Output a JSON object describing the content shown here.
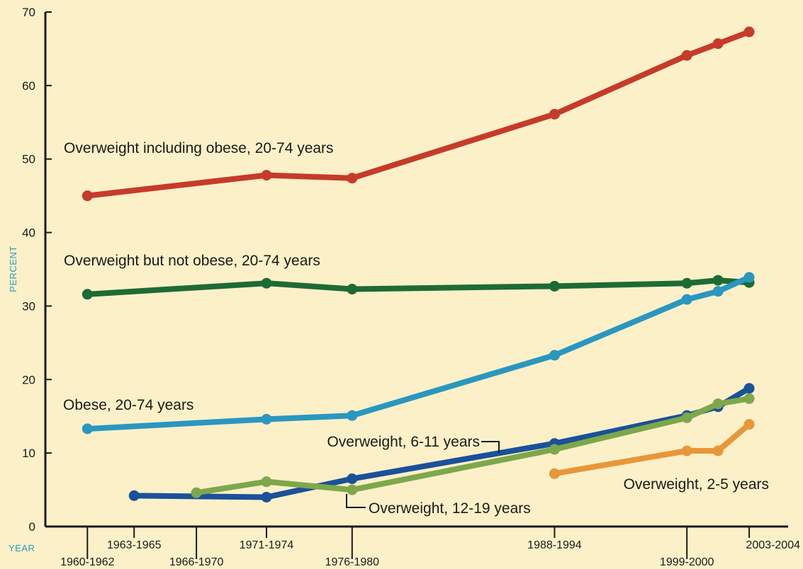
{
  "colors": {
    "background": "#fcf0c8",
    "axis": "#1a1a1a",
    "axis_label": "#2a9cc0"
  },
  "chart_data": {
    "type": "line",
    "xlabel": "YEAR",
    "ylabel": "PERCENT",
    "ylim": [
      0,
      70
    ],
    "yticks": [
      0,
      10,
      20,
      30,
      40,
      50,
      60,
      70
    ],
    "grid": false,
    "x_ticks": [
      {
        "label": "1960-1962",
        "x": 1961
      },
      {
        "label": "1963-1965",
        "x": 1964
      },
      {
        "label": "1966-1970",
        "x": 1968
      },
      {
        "label": "1971-1974",
        "x": 1972.5
      },
      {
        "label": "1976-1980",
        "x": 1978
      },
      {
        "label": "1988-1994",
        "x": 1991
      },
      {
        "label": "1999-2000",
        "x": 1999.5
      },
      {
        "label": "2003-2004",
        "x": 2003.5
      }
    ],
    "series": [
      {
        "name": "Overweight including obese, 20-74 years",
        "color": "#c63b2a",
        "x": [
          1961,
          1972.5,
          1978,
          1991,
          1999.5,
          2001.5,
          2003.5
        ],
        "y": [
          45.0,
          47.8,
          47.4,
          56.1,
          64.1,
          65.7,
          67.3
        ]
      },
      {
        "name": "Overweight but not obese, 20-74 years",
        "color": "#1d6b34",
        "x": [
          1961,
          1972.5,
          1978,
          1991,
          1999.5,
          2001.5,
          2003.5
        ],
        "y": [
          31.6,
          33.1,
          32.3,
          32.7,
          33.1,
          33.5,
          33.2
        ]
      },
      {
        "name": "Obese, 20-74 years",
        "color": "#2a97bf",
        "x": [
          1961,
          1972.5,
          1978,
          1991,
          1999.5,
          2001.5,
          2003.5
        ],
        "y": [
          13.3,
          14.6,
          15.1,
          23.3,
          30.9,
          32.0,
          33.9
        ]
      },
      {
        "name": "Overweight, 6-11 years",
        "color": "#1a5199",
        "x": [
          1964,
          1972.5,
          1978,
          1991,
          1999.5,
          2001.5,
          2003.5
        ],
        "y": [
          4.2,
          4.0,
          6.5,
          11.3,
          15.1,
          16.3,
          18.8
        ]
      },
      {
        "name": "Overweight, 12-19 years",
        "color": "#7da74b",
        "x": [
          1968,
          1972.5,
          1978,
          1991,
          1999.5,
          2001.5,
          2003.5
        ],
        "y": [
          4.6,
          6.1,
          5.0,
          10.5,
          14.8,
          16.7,
          17.4
        ]
      },
      {
        "name": "Overweight, 2-5 years",
        "color": "#e8963a",
        "x": [
          1991,
          1999.5,
          2001.5,
          2003.5
        ],
        "y": [
          7.2,
          10.3,
          10.3,
          13.9
        ]
      }
    ]
  }
}
